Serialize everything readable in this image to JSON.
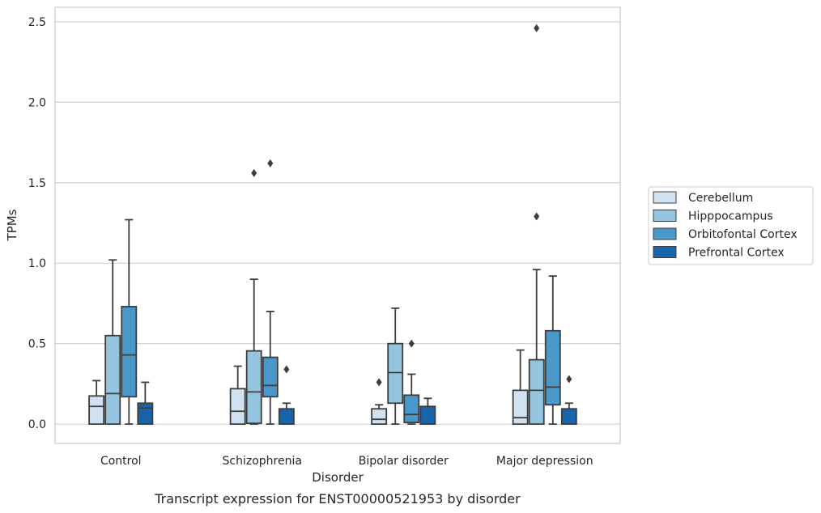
{
  "chart_data": {
    "type": "box",
    "title": "",
    "caption": "Transcript expression for ENST00000521953 by disorder",
    "xlabel": "Disorder",
    "ylabel": "TPMs",
    "ylim": [
      -0.12,
      2.59
    ],
    "yticks": [
      "0.0",
      "0.5",
      "1.0",
      "1.5",
      "2.0",
      "2.5"
    ],
    "ytick_values": [
      0.0,
      0.5,
      1.0,
      1.5,
      2.0,
      2.5
    ],
    "grid": "horizontal",
    "legend_position": "right",
    "categories": [
      "Control",
      "Schizophrenia",
      "Bipolar disorder",
      "Major depression"
    ],
    "series": [
      {
        "name": "Cerebellum",
        "color": "#d0e1f2",
        "boxes": [
          {
            "q1": 0.0,
            "median": 0.11,
            "q3": 0.175,
            "whisker_low": 0.0,
            "whisker_high": 0.27,
            "outliers": []
          },
          {
            "q1": 0.0,
            "median": 0.08,
            "q3": 0.22,
            "whisker_low": 0.0,
            "whisker_high": 0.36,
            "outliers": []
          },
          {
            "q1": 0.0,
            "median": 0.03,
            "q3": 0.095,
            "whisker_low": 0.0,
            "whisker_high": 0.12,
            "outliers": [
              0.26
            ]
          },
          {
            "q1": 0.0,
            "median": 0.04,
            "q3": 0.21,
            "whisker_low": 0.0,
            "whisker_high": 0.46,
            "outliers": []
          }
        ]
      },
      {
        "name": "Hipppocampus",
        "color": "#94c4df",
        "boxes": [
          {
            "q1": 0.0,
            "median": 0.19,
            "q3": 0.55,
            "whisker_low": 0.0,
            "whisker_high": 1.02,
            "outliers": []
          },
          {
            "q1": 0.005,
            "median": 0.2,
            "q3": 0.455,
            "whisker_low": 0.0,
            "whisker_high": 0.9,
            "outliers": [
              1.56
            ]
          },
          {
            "q1": 0.13,
            "median": 0.32,
            "q3": 0.5,
            "whisker_low": 0.0,
            "whisker_high": 0.72,
            "outliers": []
          },
          {
            "q1": 0.0,
            "median": 0.21,
            "q3": 0.4,
            "whisker_low": 0.0,
            "whisker_high": 0.96,
            "outliers": [
              1.29,
              2.46
            ]
          }
        ]
      },
      {
        "name": "Orbitofontal Cortex",
        "color": "#4a98c9",
        "boxes": [
          {
            "q1": 0.17,
            "median": 0.43,
            "q3": 0.73,
            "whisker_low": 0.0,
            "whisker_high": 1.27,
            "outliers": []
          },
          {
            "q1": 0.17,
            "median": 0.24,
            "q3": 0.415,
            "whisker_low": 0.0,
            "whisker_high": 0.7,
            "outliers": [
              1.62
            ]
          },
          {
            "q1": 0.01,
            "median": 0.06,
            "q3": 0.18,
            "whisker_low": 0.0,
            "whisker_high": 0.31,
            "outliers": [
              0.5
            ]
          },
          {
            "q1": 0.12,
            "median": 0.23,
            "q3": 0.58,
            "whisker_low": 0.0,
            "whisker_high": 0.92,
            "outliers": []
          }
        ]
      },
      {
        "name": "Prefrontal Cortex",
        "color": "#1764ab",
        "boxes": [
          {
            "q1": 0.0,
            "median": 0.1,
            "q3": 0.13,
            "whisker_low": 0.0,
            "whisker_high": 0.26,
            "outliers": []
          },
          {
            "q1": 0.0,
            "median": 0.0,
            "q3": 0.095,
            "whisker_low": 0.0,
            "whisker_high": 0.13,
            "outliers": [
              0.34
            ]
          },
          {
            "q1": 0.0,
            "median": 0.0,
            "q3": 0.11,
            "whisker_low": 0.0,
            "whisker_high": 0.16,
            "outliers": []
          },
          {
            "q1": 0.0,
            "median": 0.0,
            "q3": 0.095,
            "whisker_low": 0.0,
            "whisker_high": 0.13,
            "outliers": [
              0.28
            ]
          }
        ]
      }
    ]
  }
}
